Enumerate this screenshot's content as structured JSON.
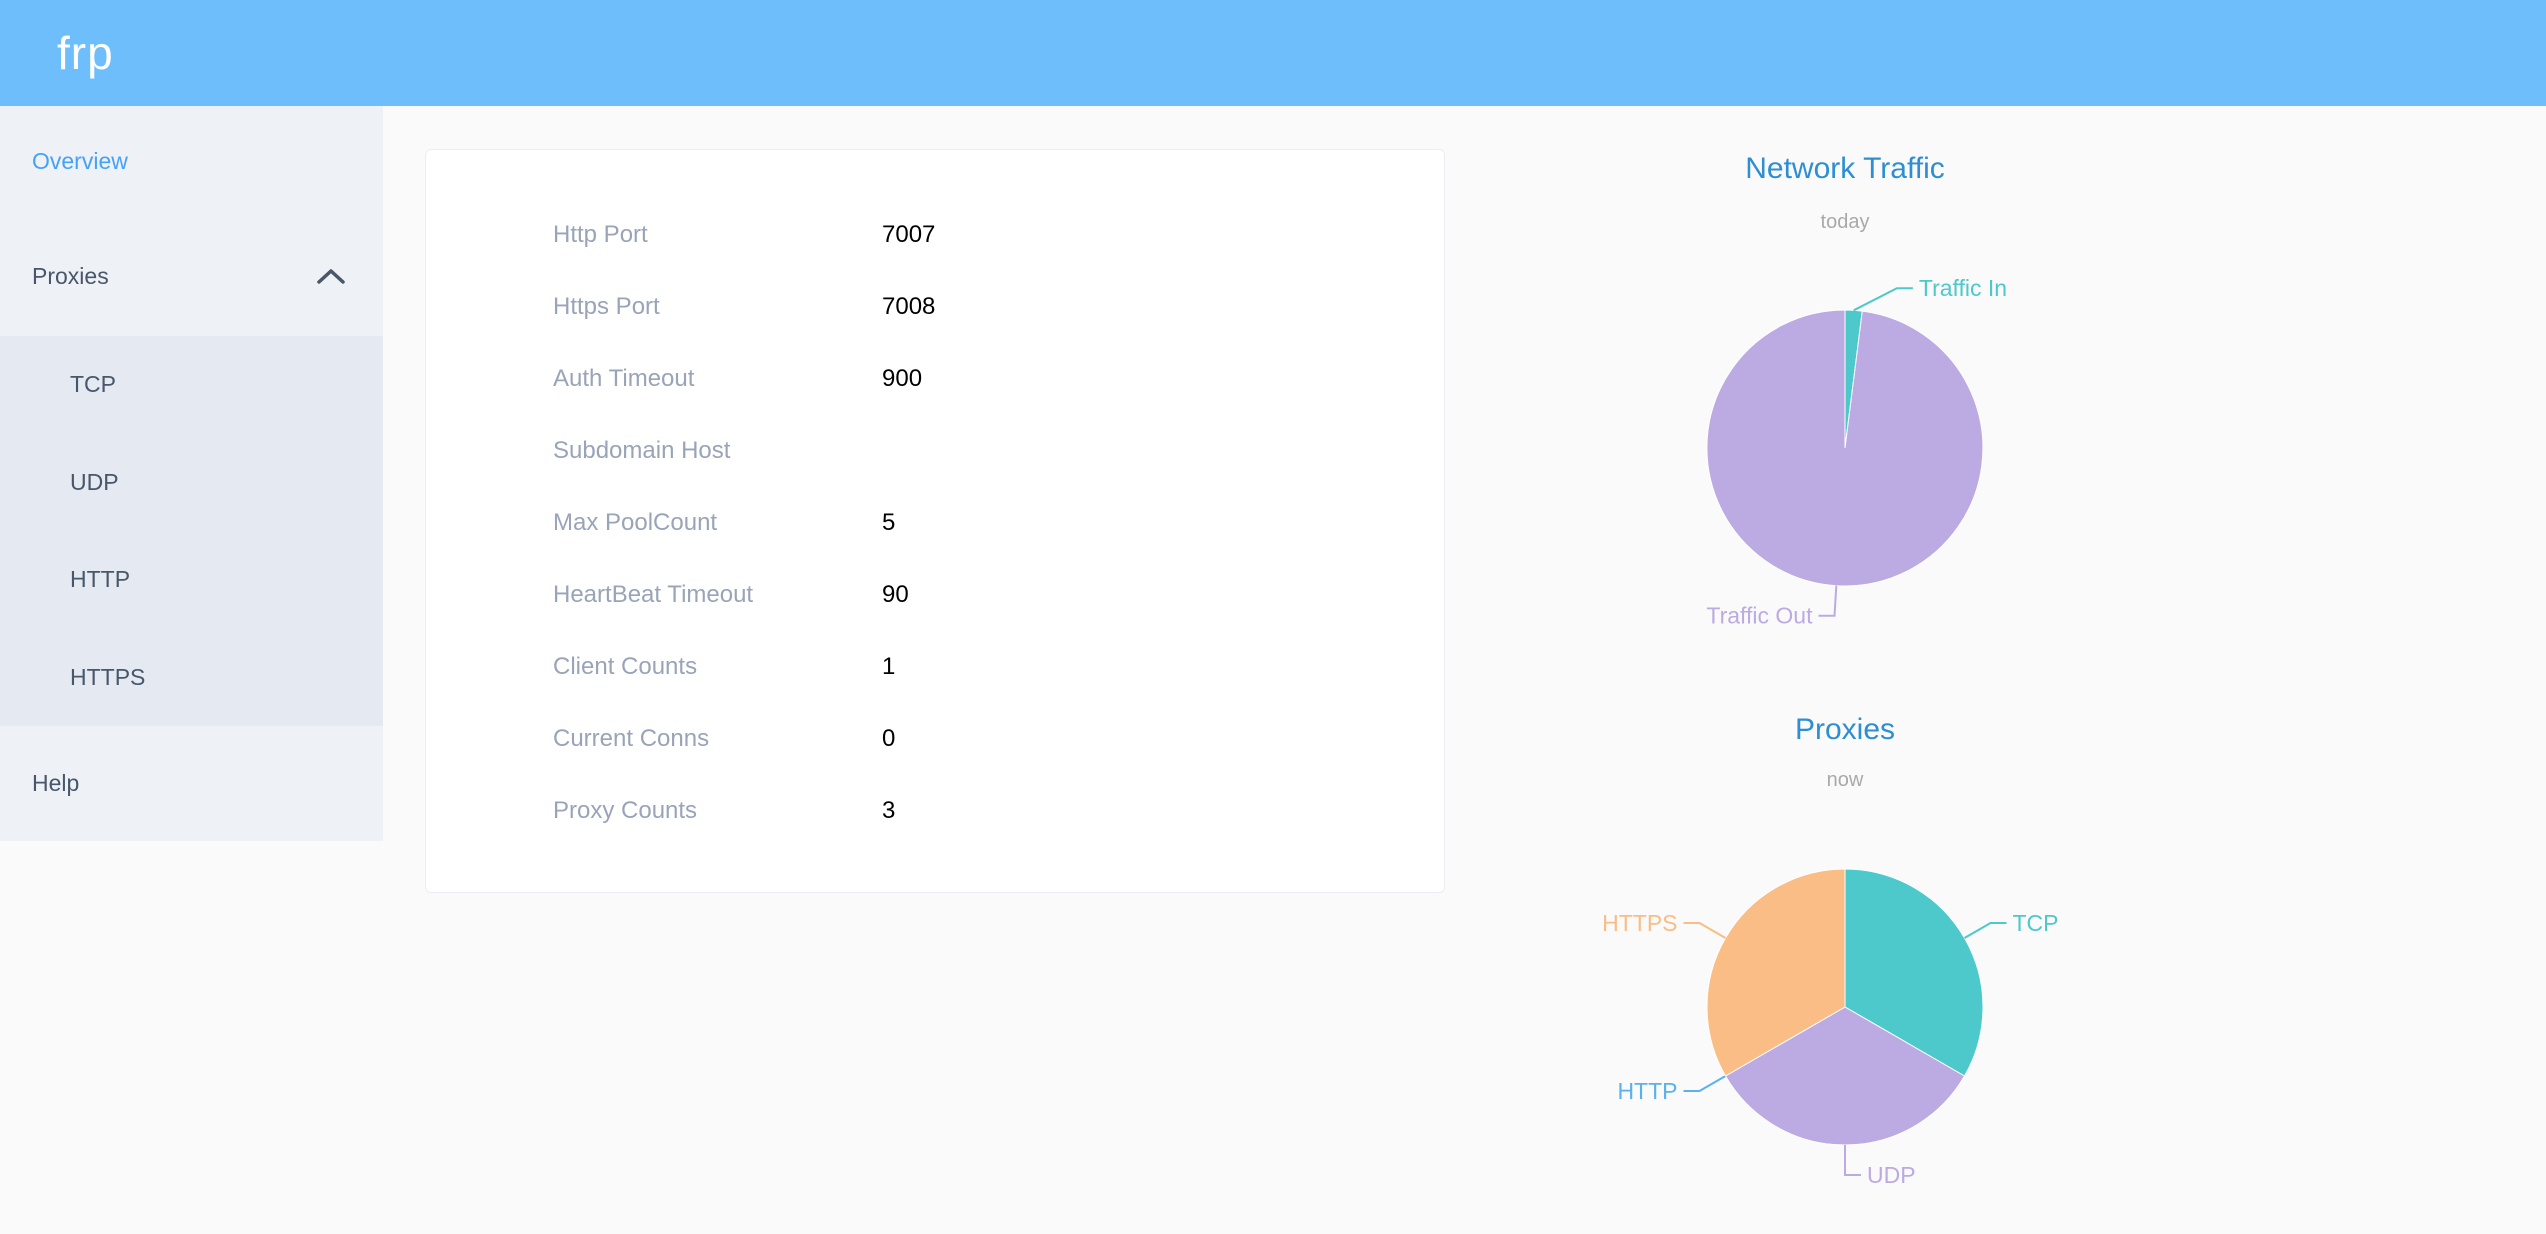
{
  "header": {
    "logo": "frp"
  },
  "colors": {
    "header_bg": "#6ebefc",
    "sidebar_bg": "#eef1f6",
    "submenu_bg": "#e5e9f2",
    "sidebar_text": "#48576a",
    "active_item": "#46a2f8",
    "chart_title": "#2d8ed3",
    "chart_subtitle": "#a9a9a9",
    "teal": "#4dc9cc",
    "purple": "#bcaae2",
    "blue": "#5ab1ef",
    "orange": "#f9bd85"
  },
  "sidebar": {
    "items": [
      {
        "label": "Overview",
        "active": true
      },
      {
        "label": "Proxies",
        "expanded": true,
        "children": [
          "TCP",
          "UDP",
          "HTTP",
          "HTTPS"
        ]
      },
      {
        "label": "Help"
      }
    ]
  },
  "overview": {
    "rows": [
      {
        "label": "Http Port",
        "value": "7007"
      },
      {
        "label": "Https Port",
        "value": "7008"
      },
      {
        "label": "Auth Timeout",
        "value": "900"
      },
      {
        "label": "Subdomain Host",
        "value": ""
      },
      {
        "label": "Max PoolCount",
        "value": "5"
      },
      {
        "label": "HeartBeat Timeout",
        "value": "90"
      },
      {
        "label": "Client Counts",
        "value": "1"
      },
      {
        "label": "Current Conns",
        "value": "0"
      },
      {
        "label": "Proxy Counts",
        "value": "3"
      }
    ]
  },
  "chart_data": [
    {
      "type": "pie",
      "title": "Network Traffic",
      "subtitle": "today",
      "unit": "% (estimated from slice angles)",
      "slices": [
        {
          "label": "Traffic In",
          "value": 2,
          "color": "#4dc9cc"
        },
        {
          "label": "Traffic Out",
          "value": 98,
          "color": "#bcaae2"
        }
      ]
    },
    {
      "type": "pie",
      "title": "Proxies",
      "subtitle": "now",
      "unit": "proxy count",
      "slices": [
        {
          "label": "TCP",
          "value": 1,
          "color": "#4dc9cc"
        },
        {
          "label": "UDP",
          "value": 1,
          "color": "#bcaae2"
        },
        {
          "label": "HTTP",
          "value": 0,
          "color": "#5ab1ef"
        },
        {
          "label": "HTTPS",
          "value": 1,
          "color": "#f9bd85"
        }
      ]
    }
  ]
}
